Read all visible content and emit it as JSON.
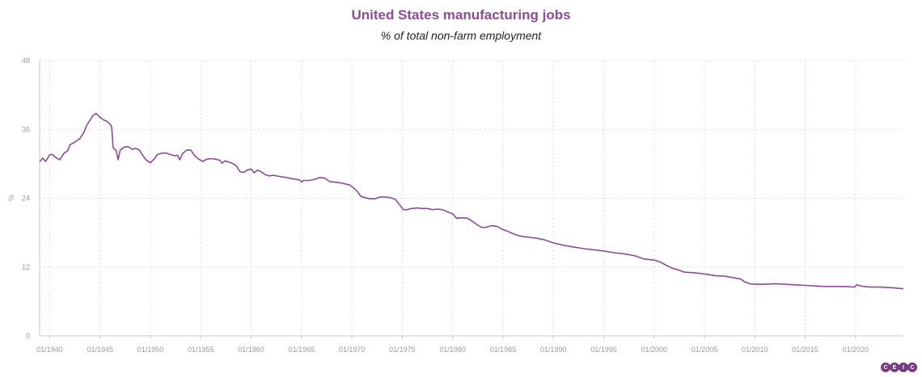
{
  "chart_data": {
    "type": "line",
    "title": "United States manufacturing jobs",
    "subtitle": "% of total non-farm employment",
    "ylabel": "%",
    "xlabel": "",
    "ylim": [
      0,
      48
    ],
    "yticks": [
      0,
      12,
      24,
      36,
      48
    ],
    "xlim": [
      1939.0,
      2024.75
    ],
    "xticks": [
      {
        "value": 1940,
        "label": "01/1940"
      },
      {
        "value": 1945,
        "label": "01/1945"
      },
      {
        "value": 1950,
        "label": "01/1950"
      },
      {
        "value": 1955,
        "label": "01/1955"
      },
      {
        "value": 1960,
        "label": "01/1960"
      },
      {
        "value": 1965,
        "label": "01/1965"
      },
      {
        "value": 1970,
        "label": "01/1970"
      },
      {
        "value": 1975,
        "label": "01/1975"
      },
      {
        "value": 1980,
        "label": "01/1980"
      },
      {
        "value": 1985,
        "label": "01/1985"
      },
      {
        "value": 1990,
        "label": "01/1990"
      },
      {
        "value": 1995,
        "label": "01/1995"
      },
      {
        "value": 2000,
        "label": "01/2000"
      },
      {
        "value": 2005,
        "label": "01/2005"
      },
      {
        "value": 2010,
        "label": "01/2010"
      },
      {
        "value": 2015,
        "label": "01/2015"
      },
      {
        "value": 2020,
        "label": "01/2020"
      }
    ],
    "grid": true,
    "color": "#8e4a9b",
    "series": [
      {
        "name": "",
        "points": [
          [
            1939.0,
            30.3
          ],
          [
            1939.3,
            31.0
          ],
          [
            1939.6,
            30.4
          ],
          [
            1940.0,
            31.6
          ],
          [
            1940.3,
            31.6
          ],
          [
            1940.6,
            31.1
          ],
          [
            1941.0,
            30.7
          ],
          [
            1941.4,
            31.8
          ],
          [
            1941.8,
            32.3
          ],
          [
            1942.0,
            33.3
          ],
          [
            1942.5,
            33.8
          ],
          [
            1943.0,
            34.4
          ],
          [
            1943.4,
            35.5
          ],
          [
            1943.7,
            36.8
          ],
          [
            1944.0,
            37.6
          ],
          [
            1944.3,
            38.4
          ],
          [
            1944.6,
            38.8
          ],
          [
            1945.0,
            38.1
          ],
          [
            1945.4,
            37.6
          ],
          [
            1945.7,
            37.4
          ],
          [
            1946.0,
            36.9
          ],
          [
            1946.15,
            36.4
          ],
          [
            1946.3,
            32.8
          ],
          [
            1946.6,
            32.3
          ],
          [
            1946.8,
            30.7
          ],
          [
            1947.0,
            32.4
          ],
          [
            1947.4,
            32.9
          ],
          [
            1947.8,
            33.0
          ],
          [
            1948.2,
            32.5
          ],
          [
            1948.5,
            32.7
          ],
          [
            1948.9,
            32.4
          ],
          [
            1949.3,
            31.3
          ],
          [
            1949.6,
            30.6
          ],
          [
            1950.0,
            30.2
          ],
          [
            1950.3,
            30.7
          ],
          [
            1950.7,
            31.6
          ],
          [
            1951.0,
            31.8
          ],
          [
            1951.5,
            31.9
          ],
          [
            1952.0,
            31.6
          ],
          [
            1952.4,
            31.4
          ],
          [
            1952.7,
            31.5
          ],
          [
            1952.9,
            30.7
          ],
          [
            1953.2,
            31.8
          ],
          [
            1953.6,
            32.4
          ],
          [
            1954.0,
            32.4
          ],
          [
            1954.4,
            31.4
          ],
          [
            1954.8,
            30.8
          ],
          [
            1955.2,
            30.4
          ],
          [
            1955.6,
            30.8
          ],
          [
            1956.0,
            30.9
          ],
          [
            1956.5,
            30.8
          ],
          [
            1956.9,
            30.6
          ],
          [
            1957.1,
            30.1
          ],
          [
            1957.4,
            30.5
          ],
          [
            1958.0,
            30.2
          ],
          [
            1958.5,
            29.7
          ],
          [
            1958.9,
            28.6
          ],
          [
            1959.3,
            28.5
          ],
          [
            1959.6,
            28.9
          ],
          [
            1960.0,
            29.1
          ],
          [
            1960.3,
            28.4
          ],
          [
            1960.6,
            28.9
          ],
          [
            1961.0,
            28.6
          ],
          [
            1961.4,
            28.1
          ],
          [
            1961.8,
            27.9
          ],
          [
            1962.2,
            28.0
          ],
          [
            1962.8,
            27.8
          ],
          [
            1963.5,
            27.6
          ],
          [
            1964.0,
            27.4
          ],
          [
            1964.5,
            27.3
          ],
          [
            1964.9,
            27.1
          ],
          [
            1965.0,
            26.8
          ],
          [
            1965.2,
            27.1
          ],
          [
            1965.8,
            27.1
          ],
          [
            1966.3,
            27.3
          ],
          [
            1966.8,
            27.6
          ],
          [
            1967.3,
            27.5
          ],
          [
            1967.8,
            26.9
          ],
          [
            1968.3,
            26.8
          ],
          [
            1968.8,
            26.7
          ],
          [
            1969.3,
            26.5
          ],
          [
            1969.8,
            26.3
          ],
          [
            1970.3,
            25.6
          ],
          [
            1970.6,
            25.0
          ],
          [
            1970.9,
            24.3
          ],
          [
            1971.3,
            24.1
          ],
          [
            1971.8,
            23.9
          ],
          [
            1972.3,
            23.9
          ],
          [
            1972.8,
            24.2
          ],
          [
            1973.3,
            24.2
          ],
          [
            1973.8,
            24.1
          ],
          [
            1974.3,
            23.8
          ],
          [
            1974.8,
            22.7
          ],
          [
            1975.1,
            22.0
          ],
          [
            1975.5,
            22.0
          ],
          [
            1975.9,
            22.2
          ],
          [
            1976.5,
            22.3
          ],
          [
            1977.0,
            22.2
          ],
          [
            1977.5,
            22.2
          ],
          [
            1978.0,
            22.0
          ],
          [
            1978.5,
            22.1
          ],
          [
            1979.0,
            22.0
          ],
          [
            1979.5,
            21.6
          ],
          [
            1980.0,
            21.3
          ],
          [
            1980.4,
            20.5
          ],
          [
            1980.9,
            20.6
          ],
          [
            1981.5,
            20.5
          ],
          [
            1982.0,
            19.9
          ],
          [
            1982.5,
            19.3
          ],
          [
            1982.9,
            18.9
          ],
          [
            1983.3,
            18.9
          ],
          [
            1983.8,
            19.2
          ],
          [
            1984.4,
            19.1
          ],
          [
            1984.9,
            18.6
          ],
          [
            1985.5,
            18.2
          ],
          [
            1986.0,
            17.8
          ],
          [
            1986.5,
            17.5
          ],
          [
            1987.0,
            17.3
          ],
          [
            1988.0,
            17.1
          ],
          [
            1989.0,
            16.8
          ],
          [
            1990.0,
            16.2
          ],
          [
            1991.0,
            15.8
          ],
          [
            1992.0,
            15.5
          ],
          [
            1993.0,
            15.2
          ],
          [
            1994.0,
            15.0
          ],
          [
            1995.0,
            14.8
          ],
          [
            1996.0,
            14.5
          ],
          [
            1997.0,
            14.3
          ],
          [
            1998.0,
            14.0
          ],
          [
            1999.0,
            13.4
          ],
          [
            2000.0,
            13.2
          ],
          [
            2000.6,
            12.9
          ],
          [
            2001.2,
            12.3
          ],
          [
            2001.8,
            11.8
          ],
          [
            2002.4,
            11.5
          ],
          [
            2003.0,
            11.1
          ],
          [
            2004.0,
            11.0
          ],
          [
            2005.0,
            10.8
          ],
          [
            2006.0,
            10.5
          ],
          [
            2007.0,
            10.4
          ],
          [
            2008.0,
            10.1
          ],
          [
            2008.6,
            9.9
          ],
          [
            2009.0,
            9.4
          ],
          [
            2009.5,
            9.1
          ],
          [
            2010.0,
            9.0
          ],
          [
            2011.0,
            9.0
          ],
          [
            2012.0,
            9.1
          ],
          [
            2013.0,
            9.0
          ],
          [
            2014.0,
            8.9
          ],
          [
            2015.0,
            8.8
          ],
          [
            2016.0,
            8.7
          ],
          [
            2017.0,
            8.6
          ],
          [
            2018.0,
            8.6
          ],
          [
            2019.0,
            8.6
          ],
          [
            2019.9,
            8.5
          ],
          [
            2020.1,
            8.9
          ],
          [
            2020.3,
            8.8
          ],
          [
            2020.8,
            8.6
          ],
          [
            2021.5,
            8.5
          ],
          [
            2022.5,
            8.5
          ],
          [
            2023.5,
            8.4
          ],
          [
            2024.75,
            8.2
          ]
        ]
      }
    ]
  },
  "branding": {
    "logo_letters": [
      "C",
      "E",
      "I",
      "C"
    ]
  }
}
